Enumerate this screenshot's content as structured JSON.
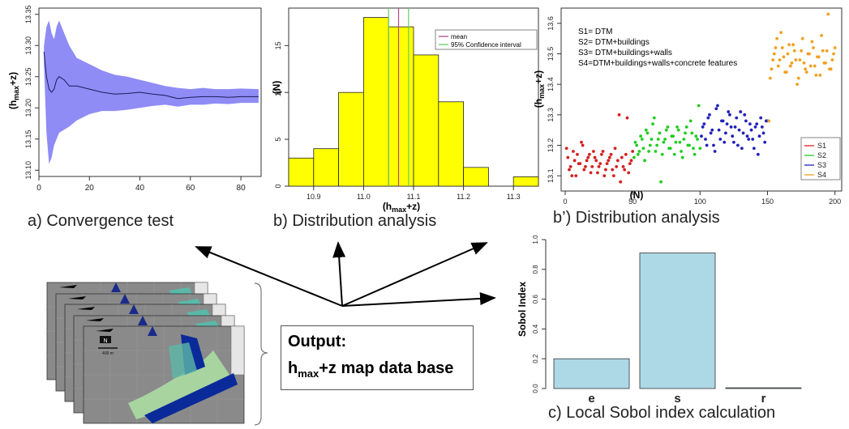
{
  "colors": {
    "band": "#8f8cf6",
    "band_line": "#1b1b55",
    "hist_fill": "#ffff00",
    "mean_line": "#b04a8a",
    "ci_line": "#66cc66",
    "s1": "#d42020",
    "s2": "#22cc22",
    "s3": "#2222bb",
    "s4": "#f0a020",
    "sobol_bar": "#add8e6",
    "arrow": "#000000"
  },
  "captions": {
    "a": "a) Convergence test",
    "b": "b) Distribution analysis",
    "bprime": "b’) Distribution analysis",
    "c": "c) Local Sobol index calculation"
  },
  "output_box": {
    "title": "Output:",
    "base": "h",
    "sub": "max",
    "rest": "+z  map data base"
  },
  "map_stack": {
    "scale_label": "400 m",
    "north_label": "N"
  },
  "chart_data": [
    {
      "id": "convergence",
      "type": "line",
      "ylabel_base": "(h",
      "ylabel_sub": "max",
      "ylabel_rest": "+z)",
      "xlim": [
        0,
        88
      ],
      "ylim": [
        13.09,
        13.36
      ],
      "xticks": [
        "0",
        "20",
        "40",
        "60",
        "80"
      ],
      "xtick_values": [
        0,
        20,
        40,
        60,
        80
      ],
      "yticks": [
        "13.10",
        "13.15",
        "13.20",
        "13.25",
        "13.30",
        "13.35"
      ],
      "ytick_values": [
        13.1,
        13.15,
        13.2,
        13.25,
        13.3,
        13.35
      ],
      "x": [
        2,
        3,
        4,
        5,
        6,
        7,
        8,
        10,
        12,
        15,
        20,
        25,
        30,
        35,
        40,
        45,
        50,
        55,
        60,
        65,
        70,
        75,
        80,
        87
      ],
      "mean": [
        13.29,
        13.25,
        13.23,
        13.225,
        13.23,
        13.245,
        13.25,
        13.245,
        13.235,
        13.235,
        13.23,
        13.225,
        13.222,
        13.223,
        13.225,
        13.222,
        13.22,
        13.215,
        13.217,
        13.218,
        13.218,
        13.217,
        13.218,
        13.218
      ],
      "upper": [
        13.3,
        13.33,
        13.34,
        13.32,
        13.31,
        13.33,
        13.34,
        13.32,
        13.3,
        13.28,
        13.27,
        13.26,
        13.253,
        13.25,
        13.245,
        13.24,
        13.235,
        13.232,
        13.23,
        13.232,
        13.23,
        13.23,
        13.231,
        13.23
      ],
      "lower": [
        13.27,
        13.16,
        13.11,
        13.12,
        13.14,
        13.15,
        13.16,
        13.165,
        13.17,
        13.18,
        13.19,
        13.195,
        13.195,
        13.197,
        13.2,
        13.203,
        13.205,
        13.202,
        13.205,
        13.205,
        13.207,
        13.206,
        13.208,
        13.208
      ],
      "grid": false
    },
    {
      "id": "histogram",
      "type": "bar",
      "xlabel_base": "(h",
      "xlabel_sub": "max",
      "xlabel_rest": "+z)",
      "ylabel": "(N)",
      "xlim": [
        10.85,
        11.35
      ],
      "ylim": [
        0,
        19
      ],
      "xticks": [
        "10.9",
        "11.0",
        "11.1",
        "11.2",
        "11.3"
      ],
      "xtick_values": [
        10.9,
        11.0,
        11.1,
        11.2,
        11.3
      ],
      "yticks": [
        "0",
        "5",
        "10",
        "15"
      ],
      "ytick_values": [
        0,
        5,
        10,
        15
      ],
      "bin_edges": [
        10.85,
        10.9,
        10.95,
        11.0,
        11.05,
        11.1,
        11.15,
        11.2,
        11.25,
        11.3,
        11.35
      ],
      "values": [
        3,
        4,
        10,
        18,
        17,
        14,
        9,
        2,
        0,
        1
      ],
      "mean": 11.07,
      "ci": [
        11.05,
        11.09
      ],
      "legend": {
        "placement": "top-right",
        "items": [
          "mean",
          "95% Confidence interval"
        ]
      }
    },
    {
      "id": "scatter",
      "type": "scatter",
      "ylabel_base": "(h",
      "ylabel_sub": "max",
      "ylabel_rest": "+z)",
      "xlabel": "(N)",
      "xlim": [
        -3,
        205
      ],
      "ylim": [
        13.05,
        13.65
      ],
      "xticks": [
        "0",
        "50",
        "100",
        "150",
        "200"
      ],
      "xtick_values": [
        0,
        50,
        100,
        150,
        200
      ],
      "yticks": [
        "13.1",
        "13.2",
        "13.3",
        "13.4",
        "13.5",
        "13.6"
      ],
      "ytick_values": [
        13.1,
        13.2,
        13.3,
        13.4,
        13.5,
        13.6
      ],
      "annotation": [
        "S1= DTM",
        "S2= DTM+buildings",
        "S3= DTM+buildings+walls",
        "S4=DTM+buildings+walls+concrete features"
      ],
      "legend": {
        "placement": "bottom-right",
        "items": [
          "S1",
          "S2",
          "S3",
          "S4"
        ]
      },
      "series": [
        {
          "name": "S1",
          "x": [
            1,
            3,
            5,
            7,
            9,
            11,
            13,
            15,
            17,
            19,
            21,
            23,
            25,
            27,
            29,
            31,
            33,
            35,
            37,
            39,
            41,
            43,
            45,
            47,
            49,
            2,
            4,
            6,
            8,
            10,
            12,
            14,
            16,
            18,
            20,
            22,
            24,
            26,
            28,
            30,
            32,
            34,
            36,
            38,
            40,
            42,
            44,
            46,
            48,
            50
          ],
          "y": [
            13.19,
            13.12,
            13.1,
            13.15,
            13.17,
            13.14,
            13.2,
            13.13,
            13.16,
            13.11,
            13.18,
            13.15,
            13.13,
            13.17,
            13.1,
            13.14,
            13.16,
            13.12,
            13.19,
            13.15,
            13.08,
            13.13,
            13.17,
            13.11,
            13.15,
            13.16,
            13.13,
            13.18,
            13.1,
            13.14,
            13.21,
            13.12,
            13.15,
            13.17,
            13.13,
            13.16,
            13.11,
            13.14,
            13.18,
            13.12,
            13.15,
            13.17,
            13.1,
            13.13,
            13.3,
            13.16,
            13.12,
            13.29,
            13.14,
            13.18
          ]
        },
        {
          "name": "S2",
          "x": [
            51,
            53,
            55,
            57,
            59,
            61,
            63,
            65,
            67,
            69,
            71,
            73,
            75,
            77,
            79,
            81,
            83,
            85,
            87,
            89,
            91,
            93,
            95,
            97,
            99,
            52,
            54,
            56,
            58,
            60,
            62,
            64,
            66,
            68,
            70,
            72,
            74,
            76,
            78,
            80,
            82,
            84,
            86,
            88,
            90,
            92,
            94,
            96,
            98,
            100
          ],
          "y": [
            13.16,
            13.2,
            13.18,
            13.22,
            13.15,
            13.24,
            13.2,
            13.27,
            13.18,
            13.22,
            13.08,
            13.21,
            13.25,
            13.19,
            13.23,
            13.17,
            13.26,
            13.21,
            13.16,
            13.24,
            13.2,
            13.28,
            13.19,
            13.23,
            13.33,
            13.21,
            13.17,
            13.23,
            13.19,
            13.25,
            13.18,
            13.22,
            13.29,
            13.2,
            13.24,
            13.17,
            13.22,
            13.26,
            13.19,
            13.23,
            13.21,
            13.25,
            13.18,
            13.22,
            13.26,
            13.2,
            13.24,
            13.17,
            13.22,
            13.19
          ]
        },
        {
          "name": "S3",
          "x": [
            101,
            103,
            105,
            107,
            109,
            111,
            113,
            115,
            117,
            119,
            121,
            123,
            125,
            127,
            129,
            131,
            133,
            135,
            137,
            139,
            141,
            143,
            145,
            147,
            149,
            102,
            104,
            106,
            108,
            110,
            112,
            114,
            116,
            118,
            120,
            122,
            124,
            126,
            128,
            130,
            132,
            134,
            136,
            138,
            140,
            142,
            144,
            146,
            148,
            150
          ],
          "y": [
            13.23,
            13.27,
            13.2,
            13.3,
            13.25,
            13.18,
            13.33,
            13.22,
            13.28,
            13.24,
            13.31,
            13.26,
            13.21,
            13.29,
            13.25,
            13.19,
            13.3,
            13.23,
            13.27,
            13.22,
            13.26,
            13.17,
            13.29,
            13.24,
            13.28,
            13.26,
            13.22,
            13.29,
            13.24,
            13.2,
            13.32,
            13.25,
            13.28,
            13.21,
            13.27,
            13.3,
            13.23,
            13.26,
            13.2,
            13.31,
            13.24,
            13.28,
            13.22,
            13.25,
            13.19,
            13.27,
            13.23,
            13.26,
            13.21,
            13.28
          ]
        },
        {
          "name": "S4",
          "x": [
            151,
            153,
            155,
            157,
            159,
            161,
            163,
            165,
            167,
            169,
            171,
            173,
            175,
            177,
            179,
            181,
            183,
            185,
            187,
            189,
            191,
            193,
            195,
            197,
            199,
            152,
            154,
            156,
            158,
            160,
            162,
            164,
            166,
            168,
            170,
            172,
            174,
            176,
            178,
            180,
            182,
            184,
            186,
            188,
            190,
            192,
            194,
            196,
            198,
            200
          ],
          "y": [
            13.28,
            13.45,
            13.5,
            13.55,
            13.48,
            13.52,
            13.44,
            13.5,
            13.46,
            13.53,
            13.48,
            13.42,
            13.51,
            13.47,
            13.44,
            13.5,
            13.54,
            13.46,
            13.49,
            13.43,
            13.51,
            13.47,
            13.63,
            13.45,
            13.5,
            13.42,
            13.48,
            13.52,
            13.46,
            13.57,
            13.49,
            13.44,
            13.53,
            13.47,
            13.51,
            13.4,
            13.48,
            13.55,
            13.45,
            13.5,
            13.46,
            13.52,
            13.43,
            13.49,
            13.56,
            13.47,
            13.51,
            13.45,
            13.48,
            13.52
          ]
        }
      ]
    },
    {
      "id": "sobol",
      "type": "bar",
      "ylabel": "Sobol Index",
      "categories": [
        "e",
        "s",
        "r"
      ],
      "values": [
        0.2,
        0.91,
        0.005
      ],
      "ylim": [
        0,
        1
      ],
      "yticks": [
        "0.0",
        "0.2",
        "0.4",
        "0.6",
        "0.8",
        "1.0"
      ],
      "ytick_values": [
        0.0,
        0.2,
        0.4,
        0.6,
        0.8,
        1.0
      ]
    }
  ]
}
